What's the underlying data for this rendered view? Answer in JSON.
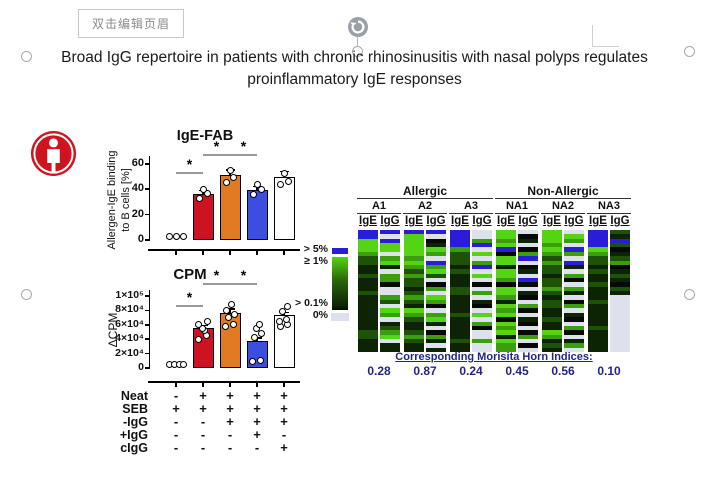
{
  "editor": {
    "header_button_label": "双击编辑页眉"
  },
  "figure": {
    "title_line1": "Broad IgG repertoire in patients with chronic rhinosinusitis with nasal polyps regulates",
    "title_line2": "proinflammatory IgE responses"
  },
  "icons": {
    "person": "person-in-red-circle",
    "rotate": "rotate-arrow-handle"
  },
  "colors": {
    "accent_red": "#cf1420",
    "bar_red": "#cf1222",
    "bar_orange": "#e07b24",
    "bar_blue": "#3a4fe0",
    "bar_white": "#ffffff",
    "navy_text": "#23238f",
    "sig_line": "#999999",
    "heatmap": {
      "B": "#2a1dd8",
      "G": "#55d414",
      "g": "#3b9e0e",
      "d": "#1d5207",
      "k": "#0c2403",
      "b": "#060a02",
      "w": "#dde1ec"
    }
  },
  "chart_data": [
    {
      "type": "bar",
      "title": "IgE-FAB",
      "ylabel": "Allergen-IgE binding to B cells [%]",
      "ylabel_lines": [
        "Allergen-IgE binding",
        "to B cells [%]"
      ],
      "ylim": [
        0,
        62
      ],
      "yticks": {
        "labels": [
          "0",
          "20",
          "40",
          "60"
        ],
        "values": [
          0,
          20,
          40,
          60
        ]
      },
      "bar_colors": [
        "none",
        "red",
        "orange",
        "blue",
        "white"
      ],
      "values": [
        0.8,
        36,
        51,
        39,
        50
      ],
      "errors": [
        0,
        3,
        4,
        3,
        4
      ],
      "points": [
        [
          [
            -7,
            1.5
          ],
          [
            0,
            1.5
          ],
          [
            7,
            1.5
          ]
        ],
        [
          [
            -4,
            33
          ],
          [
            4,
            37
          ],
          [
            0,
            40
          ]
        ],
        [
          [
            -4,
            45
          ],
          [
            3,
            49
          ],
          [
            0,
            55
          ]
        ],
        [
          [
            -4,
            36
          ],
          [
            4,
            40
          ],
          [
            0,
            44
          ]
        ],
        [
          [
            -4,
            44
          ],
          [
            4,
            46
          ],
          [
            0,
            52
          ]
        ]
      ],
      "significance": [
        {
          "a": 0,
          "b": 1,
          "label": "*",
          "level": "low"
        },
        {
          "a": 1,
          "b": 2,
          "label": "*",
          "level": "high"
        },
        {
          "a": 2,
          "b": 3,
          "label": "*",
          "level": "high"
        }
      ]
    },
    {
      "type": "bar",
      "title": "CPM",
      "ylabel": "ΔCPM",
      "ylim": [
        0,
        100000
      ],
      "yticks": {
        "labels": [
          "0",
          "2×10⁴",
          "4×10⁴",
          "6×10⁴",
          "8×10⁴",
          "1×10⁵"
        ],
        "values": [
          0,
          20000,
          40000,
          60000,
          80000,
          100000
        ]
      },
      "bar_colors": [
        "none",
        "red",
        "orange",
        "blue",
        "white"
      ],
      "values": [
        1500,
        55000,
        77000,
        37000,
        73000
      ],
      "errors": [
        0,
        4000,
        5000,
        5000,
        4000
      ],
      "points": [
        [
          [
            -7,
            2500
          ],
          [
            -2,
            3500
          ],
          [
            3,
            2000
          ],
          [
            7,
            3000
          ]
        ],
        [
          [
            -5,
            40000
          ],
          [
            3,
            45000
          ],
          [
            1,
            52000
          ],
          [
            -1,
            55000
          ],
          [
            -5,
            61000
          ],
          [
            4,
            64000
          ]
        ],
        [
          [
            -5,
            58000
          ],
          [
            3,
            60000
          ],
          [
            -2,
            70000
          ],
          [
            4,
            74000
          ],
          [
            -4,
            80000
          ],
          [
            1,
            88000
          ]
        ],
        [
          [
            -5,
            9000
          ],
          [
            3,
            11000
          ],
          [
            -3,
            42000
          ],
          [
            4,
            48000
          ],
          [
            -1,
            55000
          ],
          [
            2,
            60000
          ]
        ],
        [
          [
            -4,
            57000
          ],
          [
            3,
            60000
          ],
          [
            -5,
            65000
          ],
          [
            2,
            68000
          ],
          [
            -2,
            78000
          ],
          [
            3,
            86000
          ]
        ]
      ],
      "significance": [
        {
          "a": 0,
          "b": 1,
          "label": "*",
          "level": "low"
        },
        {
          "a": 1,
          "b": 2,
          "label": "*",
          "level": "high"
        },
        {
          "a": 2,
          "b": 3,
          "label": "*",
          "level": "high"
        }
      ]
    },
    {
      "type": "heatmap",
      "group_labels": [
        "Allergic",
        "Non-Allergic"
      ],
      "samples": [
        "A1",
        "A2",
        "A3",
        "NA1",
        "NA2",
        "NA3"
      ],
      "sample_groups": [
        0,
        0,
        0,
        1,
        1,
        1
      ],
      "isotypes": [
        "IgE",
        "IgG"
      ],
      "legend_labels": [
        "> 5%",
        "≥ 1%",
        "> 0.1%",
        "0%"
      ],
      "color_key": {
        "B": "> 5%",
        "G": "≥ 1%",
        "g": "~0.5%",
        "d": "intermediate",
        "k": "> 0.1%",
        "b": "lowest",
        "w": "0%"
      },
      "columns": {
        "A1_IgE": "BBGGGgddkkdkkkdkkkkkkkkddkkk",
        "A1_IgG": "BwBGGwgGkwggbwwgdwGgwkdgGwkk",
        "A2_IgE": "BGGGGGgGgdgddkdgdkGgdkkdgdkk",
        "A2_IgG": "BwbkGgwBgGdwbgwGgbwgGkwbgkwk",
        "A3_IgE": "BBBBgdddkdkkkddkkkkdkkkkkdkk",
        "A3_IgG": "wwgBwGwgBwGwbwgwkbwGwgbwwgww",
        "NA1_IgE": "GGgGBbGGkGGgbGGgkGgGbGgGkGgg",
        "NA1_IgG": "wbkwbgBwbkwBbwkbwgbwkbwbgwbw",
        "NA2_IgE": "GGGgGgdgddkddgdkddkkdkkGgkdk",
        "NA2_IgG": "wGgwBgwBkwgbwgkwbgwkbwgbwkgw",
        "NA3_IgE": "BBBBGgddkdkkdkkkdkkkkkdkkkkk",
        "NA3_IgG": "dkBdbkdgbkdkbdkwwwwwwwwwwwww"
      },
      "morisita_label": "Corresponding Morisita Horn Indices:",
      "morisita_values": [
        "0.28",
        "0.87",
        "0.24",
        "0.45",
        "0.56",
        "0.10"
      ]
    }
  ],
  "condition_table": {
    "rows": [
      {
        "label": "Neat",
        "cells": [
          "-",
          "+",
          "+",
          "+",
          "+"
        ]
      },
      {
        "label": "SEB",
        "cells": [
          "+",
          "+",
          "+",
          "+",
          "+"
        ]
      },
      {
        "label": "-IgG",
        "cells": [
          "-",
          "-",
          "+",
          "+",
          "+"
        ]
      },
      {
        "label": "+IgG",
        "cells": [
          "-",
          "-",
          "-",
          "+",
          "-"
        ]
      },
      {
        "label": "cIgG",
        "cells": [
          "-",
          "-",
          "-",
          "-",
          "+"
        ]
      }
    ]
  }
}
